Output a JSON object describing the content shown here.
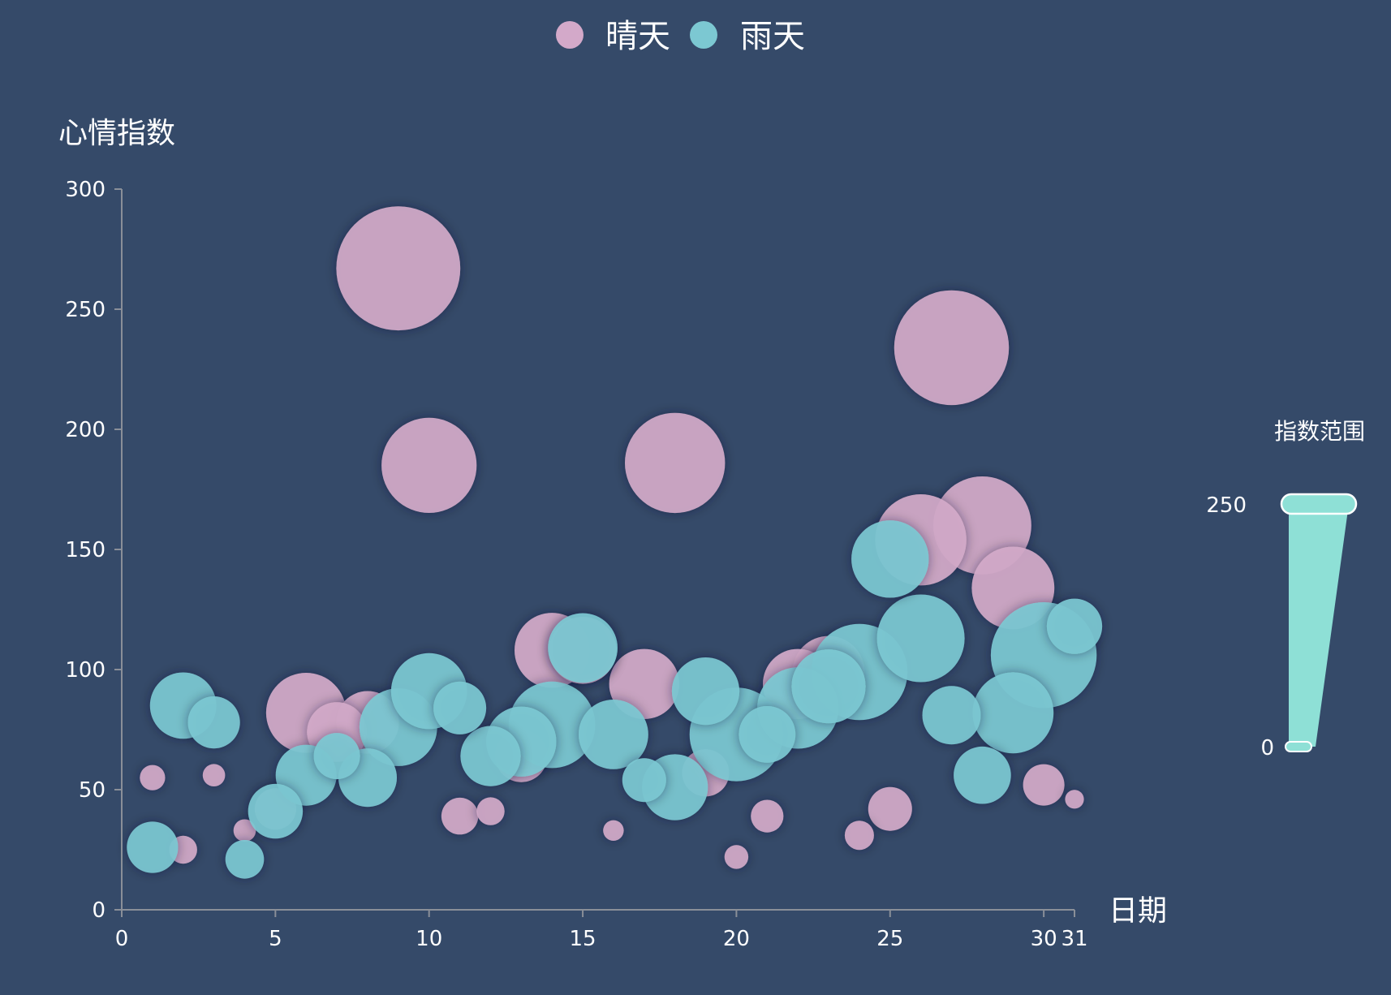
{
  "chart_data": {
    "type": "scatter",
    "title": "",
    "xlabel": "日期",
    "ylabel": "心情指数",
    "xlim": [
      0,
      31
    ],
    "ylim": [
      0,
      300
    ],
    "xticks": [
      0,
      5,
      10,
      15,
      20,
      25,
      30,
      31
    ],
    "yticks": [
      0,
      50,
      100,
      150,
      200,
      250,
      300
    ],
    "grid": false,
    "legend_position": "top-center",
    "series": [
      {
        "name": "晴天",
        "color": "#d3a9c9",
        "points": [
          {
            "x": 1,
            "y": 55,
            "size": 9
          },
          {
            "x": 2,
            "y": 25,
            "size": 11
          },
          {
            "x": 3,
            "y": 56,
            "size": 7
          },
          {
            "x": 4,
            "y": 33,
            "size": 7
          },
          {
            "x": 5,
            "y": 42,
            "size": 24
          },
          {
            "x": 6,
            "y": 82,
            "size": 90
          },
          {
            "x": 7,
            "y": 74,
            "size": 50
          },
          {
            "x": 8,
            "y": 78,
            "size": 55
          },
          {
            "x": 9,
            "y": 267,
            "size": 216
          },
          {
            "x": 10,
            "y": 185,
            "size": 127
          },
          {
            "x": 11,
            "y": 39,
            "size": 19
          },
          {
            "x": 12,
            "y": 41,
            "size": 11
          },
          {
            "x": 13,
            "y": 64,
            "size": 38
          },
          {
            "x": 14,
            "y": 108,
            "size": 79
          },
          {
            "x": 15,
            "y": 108,
            "size": 63
          },
          {
            "x": 16,
            "y": 33,
            "size": 6
          },
          {
            "x": 17,
            "y": 94,
            "size": 69
          },
          {
            "x": 18,
            "y": 186,
            "size": 141
          },
          {
            "x": 19,
            "y": 57,
            "size": 31
          },
          {
            "x": 20,
            "y": 22,
            "size": 8
          },
          {
            "x": 21,
            "y": 39,
            "size": 15
          },
          {
            "x": 22,
            "y": 94,
            "size": 69
          },
          {
            "x": 23,
            "y": 99,
            "size": 73
          },
          {
            "x": 24,
            "y": 31,
            "size": 12
          },
          {
            "x": 25,
            "y": 42,
            "size": 27
          },
          {
            "x": 26,
            "y": 154,
            "size": 117
          },
          {
            "x": 27,
            "y": 234,
            "size": 185
          },
          {
            "x": 28,
            "y": 160,
            "size": 135
          },
          {
            "x": 29,
            "y": 134,
            "size": 96
          },
          {
            "x": 30,
            "y": 52,
            "size": 24
          },
          {
            "x": 31,
            "y": 46,
            "size": 5
          }
        ]
      },
      {
        "name": "雨天",
        "color": "#7cc8d2",
        "points": [
          {
            "x": 1,
            "y": 26,
            "size": 37
          },
          {
            "x": 2,
            "y": 85,
            "size": 62
          },
          {
            "x": 3,
            "y": 78,
            "size": 38
          },
          {
            "x": 4,
            "y": 21,
            "size": 21
          },
          {
            "x": 5,
            "y": 41,
            "size": 42
          },
          {
            "x": 6,
            "y": 56,
            "size": 52
          },
          {
            "x": 7,
            "y": 64,
            "size": 30
          },
          {
            "x": 8,
            "y": 55,
            "size": 48
          },
          {
            "x": 9,
            "y": 76,
            "size": 85
          },
          {
            "x": 10,
            "y": 91,
            "size": 81
          },
          {
            "x": 11,
            "y": 84,
            "size": 39
          },
          {
            "x": 12,
            "y": 64,
            "size": 51
          },
          {
            "x": 13,
            "y": 70,
            "size": 69
          },
          {
            "x": 14,
            "y": 77,
            "size": 105
          },
          {
            "x": 15,
            "y": 109,
            "size": 68
          },
          {
            "x": 16,
            "y": 73,
            "size": 68
          },
          {
            "x": 17,
            "y": 54,
            "size": 27
          },
          {
            "x": 18,
            "y": 51,
            "size": 61
          },
          {
            "x": 19,
            "y": 91,
            "size": 64
          },
          {
            "x": 20,
            "y": 73,
            "size": 123
          },
          {
            "x": 21,
            "y": 73,
            "size": 45
          },
          {
            "x": 22,
            "y": 84,
            "size": 93
          },
          {
            "x": 23,
            "y": 93,
            "size": 77
          },
          {
            "x": 24,
            "y": 99,
            "size": 130
          },
          {
            "x": 25,
            "y": 146,
            "size": 84
          },
          {
            "x": 26,
            "y": 113,
            "size": 108
          },
          {
            "x": 27,
            "y": 81,
            "size": 48
          },
          {
            "x": 28,
            "y": 56,
            "size": 46
          },
          {
            "x": 29,
            "y": 82,
            "size": 92
          },
          {
            "x": 30,
            "y": 106,
            "size": 157
          },
          {
            "x": 31,
            "y": 118,
            "size": 43
          }
        ]
      }
    ],
    "visual_map": {
      "title": "指数范围",
      "min": 0,
      "max": 250,
      "min_label": "0",
      "max_label": "250",
      "color": "#8ee0d6"
    }
  }
}
